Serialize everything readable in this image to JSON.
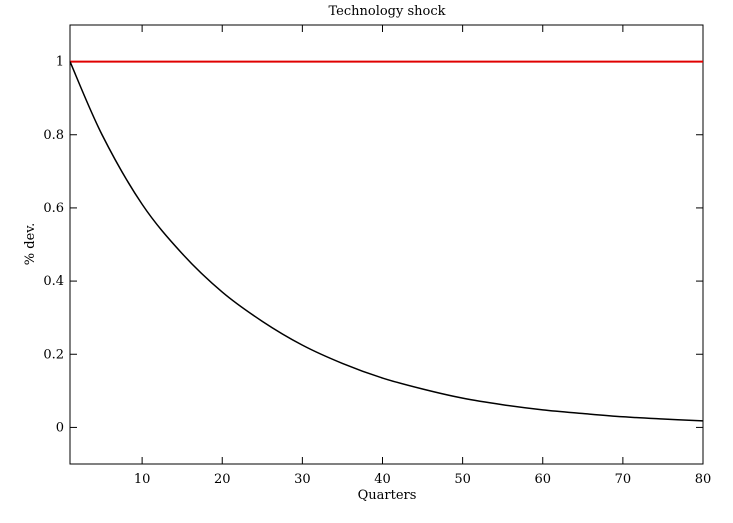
{
  "chart_data": {
    "type": "line",
    "title": "Technology shock",
    "xlabel": "Quarters",
    "ylabel": "% dev.",
    "xlim": [
      1,
      80
    ],
    "ylim": [
      -0.1,
      1.1
    ],
    "xticks": [
      10,
      20,
      30,
      40,
      50,
      60,
      70,
      80
    ],
    "yticks": [
      0,
      0.2,
      0.4,
      0.6,
      0.8,
      1
    ],
    "xtick_labels": [
      "10",
      "20",
      "30",
      "40",
      "50",
      "60",
      "70",
      "80"
    ],
    "ytick_labels": [
      "0",
      "0.2",
      "0.4",
      "0.6",
      "0.8",
      "1"
    ],
    "grid": false,
    "series": [
      {
        "color": "#e00000",
        "style": "solid",
        "x": [
          1,
          80
        ],
        "y": [
          1,
          1
        ]
      },
      {
        "color": "#000000",
        "style": "solid",
        "x": [
          1,
          5,
          10,
          15,
          20,
          25,
          30,
          35,
          40,
          45,
          50,
          55,
          60,
          65,
          70,
          75,
          80
        ],
        "y": [
          1.0,
          0.8,
          0.61,
          0.475,
          0.37,
          0.29,
          0.225,
          0.175,
          0.135,
          0.105,
          0.08,
          0.062,
          0.048,
          0.038,
          0.029,
          0.023,
          0.018
        ]
      }
    ]
  }
}
